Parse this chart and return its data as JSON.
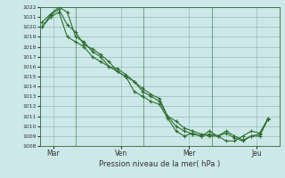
{
  "xlabel": "Pression niveau de la mer( hPa )",
  "bg_color": "#cce8e8",
  "grid_color": "#99bbbb",
  "line_color": "#2d6e2d",
  "ylim": [
    1008,
    1022
  ],
  "yticks": [
    1008,
    1009,
    1010,
    1011,
    1012,
    1013,
    1014,
    1015,
    1016,
    1017,
    1018,
    1019,
    1020,
    1021,
    1022
  ],
  "xtick_labels": [
    "Mar",
    "Ven",
    "Mer",
    "Jeu"
  ],
  "xtick_positions": [
    0.5,
    3.5,
    6.5,
    9.5
  ],
  "series": [
    [
      1020.0,
      1021.0,
      1021.5,
      1019.0,
      1018.5,
      1018.0,
      1017.0,
      1016.5,
      1016.0,
      1015.5,
      1015.0,
      1014.5,
      1013.5,
      1013.0,
      1012.5,
      1011.0,
      1010.0,
      1009.5,
      1009.2,
      1009.0,
      1009.5,
      1009.0,
      1008.5,
      1008.5,
      1009.0,
      1009.5,
      1009.3,
      1010.7
    ],
    [
      1020.5,
      1021.3,
      1022.0,
      1021.5,
      1019.0,
      1018.5,
      1017.5,
      1017.0,
      1016.0,
      1015.8,
      1015.2,
      1014.5,
      1013.8,
      1013.2,
      1012.8,
      1011.0,
      1010.5,
      1009.8,
      1009.5,
      1009.2,
      1009.0,
      1009.0,
      1009.5,
      1009.0,
      1008.6,
      1009.0,
      1009.2,
      1010.8
    ],
    [
      1020.0,
      1021.2,
      1021.8,
      1020.2,
      1019.5,
      1018.2,
      1017.8,
      1017.2,
      1016.5,
      1015.5,
      1015.0,
      1013.5,
      1013.0,
      1012.5,
      1012.2,
      1010.8,
      1009.5,
      1009.0,
      1009.3,
      1009.0,
      1009.2,
      1009.0,
      1009.3,
      1008.8,
      1008.5,
      1009.0,
      1009.0,
      1010.7
    ]
  ],
  "x_vlines": [
    1.5,
    4.5,
    7.5
  ],
  "xlim": [
    -0.1,
    10.5
  ],
  "figwidth": 3.2,
  "figheight": 2.0,
  "dpi": 100
}
